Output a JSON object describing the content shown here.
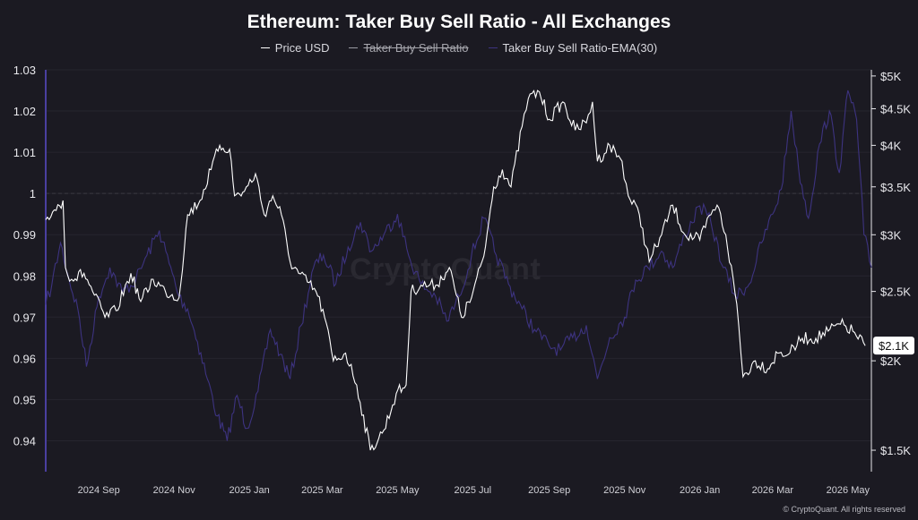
{
  "chart_data": {
    "type": "line",
    "title": "Ethereum: Taker Buy Sell Ratio - All Exchanges",
    "legend": [
      {
        "name": "Price USD",
        "color": "#ffffff",
        "hidden": false
      },
      {
        "name": "Taker Buy Sell Ratio",
        "color": "#ffffff",
        "hidden": true
      },
      {
        "name": "Taker Buy Sell Ratio-EMA(30)",
        "color": "#3d3380",
        "hidden": false
      }
    ],
    "x_ticks": [
      "2024 Sep",
      "2024 Nov",
      "2025 Jan",
      "2025 Mar",
      "2025 May",
      "2025 Jul",
      "2025 Sep",
      "2025 Nov",
      "2026 Jan",
      "2026 Mar",
      "2026 May"
    ],
    "x_range": [
      "2024-07-20",
      "2026-05-20"
    ],
    "y_left": {
      "ticks": [
        "1.03",
        "1.02",
        "1.01",
        "1",
        "0.99",
        "0.98",
        "0.97",
        "0.96",
        "0.95",
        "0.94"
      ],
      "min": 0.9325,
      "max": 1.03,
      "ref_line": 1.0
    },
    "y_right": {
      "ticks": [
        "$5K",
        "$4.5K",
        "$4K",
        "$3.5K",
        "$3K",
        "$2.5K",
        "$2K",
        "$1.5K"
      ],
      "values": [
        5000,
        4500,
        4000,
        3500,
        3000,
        2500,
        2000,
        1500
      ],
      "scale": "log",
      "min": 1400,
      "max": 5100,
      "current_label": "$2.1K",
      "current_value": 2100
    },
    "series": [
      {
        "name": "Price USD",
        "axis": "right",
        "points": [
          [
            "2024-07-20",
            3150
          ],
          [
            "2024-07-27",
            3250
          ],
          [
            "2024-08-03",
            3350
          ],
          [
            "2024-08-05",
            2700
          ],
          [
            "2024-08-10",
            2600
          ],
          [
            "2024-08-20",
            2650
          ],
          [
            "2024-08-27",
            2500
          ],
          [
            "2024-09-06",
            2300
          ],
          [
            "2024-09-15",
            2350
          ],
          [
            "2024-09-27",
            2650
          ],
          [
            "2024-10-05",
            2420
          ],
          [
            "2024-10-15",
            2600
          ],
          [
            "2024-10-25",
            2500
          ],
          [
            "2024-11-05",
            2450
          ],
          [
            "2024-11-12",
            3200
          ],
          [
            "2024-11-22",
            3350
          ],
          [
            "2024-12-01",
            3700
          ],
          [
            "2024-12-08",
            4000
          ],
          [
            "2024-12-16",
            3950
          ],
          [
            "2024-12-20",
            3400
          ],
          [
            "2024-12-28",
            3450
          ],
          [
            "2025-01-06",
            3650
          ],
          [
            "2025-01-13",
            3200
          ],
          [
            "2025-01-20",
            3400
          ],
          [
            "2025-01-27",
            3200
          ],
          [
            "2025-02-03",
            2750
          ],
          [
            "2025-02-10",
            2650
          ],
          [
            "2025-02-24",
            2500
          ],
          [
            "2025-03-03",
            2300
          ],
          [
            "2025-03-10",
            2000
          ],
          [
            "2025-03-20",
            2050
          ],
          [
            "2025-03-29",
            1850
          ],
          [
            "2025-04-09",
            1500
          ],
          [
            "2025-04-20",
            1600
          ],
          [
            "2025-04-30",
            1800
          ],
          [
            "2025-05-08",
            1850
          ],
          [
            "2025-05-12",
            2500
          ],
          [
            "2025-05-20",
            2550
          ],
          [
            "2025-06-01",
            2550
          ],
          [
            "2025-06-12",
            2700
          ],
          [
            "2025-06-22",
            2300
          ],
          [
            "2025-06-30",
            2450
          ],
          [
            "2025-07-10",
            2800
          ],
          [
            "2025-07-18",
            3500
          ],
          [
            "2025-07-25",
            3700
          ],
          [
            "2025-08-01",
            3500
          ],
          [
            "2025-08-10",
            4250
          ],
          [
            "2025-08-15",
            4650
          ],
          [
            "2025-08-24",
            4750
          ],
          [
            "2025-09-01",
            4350
          ],
          [
            "2025-09-12",
            4600
          ],
          [
            "2025-09-22",
            4200
          ],
          [
            "2025-10-01",
            4300
          ],
          [
            "2025-10-06",
            4600
          ],
          [
            "2025-10-10",
            3800
          ],
          [
            "2025-10-20",
            4000
          ],
          [
            "2025-10-30",
            3800
          ],
          [
            "2025-11-04",
            3400
          ],
          [
            "2025-11-13",
            3200
          ],
          [
            "2025-11-21",
            2750
          ],
          [
            "2025-12-01",
            3000
          ],
          [
            "2025-12-10",
            3300
          ],
          [
            "2025-12-20",
            3000
          ],
          [
            "2026-01-01",
            2950
          ],
          [
            "2026-01-10",
            3200
          ],
          [
            "2026-01-15",
            3300
          ],
          [
            "2026-01-22",
            3000
          ],
          [
            "2026-01-31",
            2400
          ],
          [
            "2026-02-05",
            1900
          ],
          [
            "2026-02-15",
            2000
          ],
          [
            "2026-02-25",
            1950
          ],
          [
            "2026-03-05",
            2050
          ],
          [
            "2026-03-15",
            2050
          ],
          [
            "2026-03-25",
            2150
          ],
          [
            "2026-04-05",
            2150
          ],
          [
            "2026-04-15",
            2200
          ],
          [
            "2026-04-25",
            2250
          ],
          [
            "2026-05-05",
            2200
          ],
          [
            "2026-05-15",
            2100
          ]
        ]
      },
      {
        "name": "Taker Buy Sell Ratio-EMA(30)",
        "axis": "left",
        "points": [
          [
            "2024-07-20",
            0.973
          ],
          [
            "2024-07-25",
            0.978
          ],
          [
            "2024-08-01",
            0.988
          ],
          [
            "2024-08-08",
            0.979
          ],
          [
            "2024-08-15",
            0.972
          ],
          [
            "2024-08-22",
            0.958
          ],
          [
            "2024-09-01",
            0.975
          ],
          [
            "2024-09-10",
            0.982
          ],
          [
            "2024-09-20",
            0.976
          ],
          [
            "2024-10-01",
            0.979
          ],
          [
            "2024-10-10",
            0.985
          ],
          [
            "2024-10-20",
            0.991
          ],
          [
            "2024-10-28",
            0.983
          ],
          [
            "2024-11-05",
            0.975
          ],
          [
            "2024-11-12",
            0.972
          ],
          [
            "2024-11-20",
            0.964
          ],
          [
            "2024-11-28",
            0.955
          ],
          [
            "2024-12-06",
            0.946
          ],
          [
            "2024-12-14",
            0.94
          ],
          [
            "2024-12-22",
            0.951
          ],
          [
            "2024-12-30",
            0.943
          ],
          [
            "2025-01-08",
            0.952
          ],
          [
            "2025-01-18",
            0.967
          ],
          [
            "2025-01-26",
            0.961
          ],
          [
            "2025-02-03",
            0.955
          ],
          [
            "2025-02-12",
            0.968
          ],
          [
            "2025-02-22",
            0.982
          ],
          [
            "2025-03-02",
            0.985
          ],
          [
            "2025-03-12",
            0.978
          ],
          [
            "2025-03-22",
            0.987
          ],
          [
            "2025-04-01",
            0.993
          ],
          [
            "2025-04-10",
            0.986
          ],
          [
            "2025-04-20",
            0.99
          ],
          [
            "2025-05-01",
            0.995
          ],
          [
            "2025-05-10",
            0.985
          ],
          [
            "2025-05-20",
            0.978
          ],
          [
            "2025-06-01",
            0.975
          ],
          [
            "2025-06-10",
            0.969
          ],
          [
            "2025-06-20",
            0.975
          ],
          [
            "2025-06-30",
            0.985
          ],
          [
            "2025-07-10",
            0.994
          ],
          [
            "2025-07-20",
            0.985
          ],
          [
            "2025-07-30",
            0.978
          ],
          [
            "2025-08-10",
            0.972
          ],
          [
            "2025-08-20",
            0.967
          ],
          [
            "2025-09-01",
            0.963
          ],
          [
            "2025-09-10",
            0.962
          ],
          [
            "2025-09-20",
            0.965
          ],
          [
            "2025-10-01",
            0.968
          ],
          [
            "2025-10-10",
            0.955
          ],
          [
            "2025-10-20",
            0.965
          ],
          [
            "2025-11-01",
            0.97
          ],
          [
            "2025-11-10",
            0.979
          ],
          [
            "2025-11-20",
            0.982
          ],
          [
            "2025-12-01",
            0.986
          ],
          [
            "2025-12-10",
            0.982
          ],
          [
            "2025-12-20",
            0.99
          ],
          [
            "2026-01-01",
            0.997
          ],
          [
            "2026-01-10",
            0.993
          ],
          [
            "2026-01-20",
            0.982
          ],
          [
            "2026-01-30",
            0.975
          ],
          [
            "2026-02-10",
            0.978
          ],
          [
            "2026-02-20",
            0.988
          ],
          [
            "2026-03-01",
            0.995
          ],
          [
            "2026-03-08",
            1.001
          ],
          [
            "2026-03-16",
            1.02
          ],
          [
            "2026-03-22",
            1.006
          ],
          [
            "2026-03-30",
            0.994
          ],
          [
            "2026-04-08",
            1.012
          ],
          [
            "2026-04-16",
            1.02
          ],
          [
            "2026-04-24",
            1.005
          ],
          [
            "2026-05-01",
            1.025
          ],
          [
            "2026-05-08",
            1.018
          ],
          [
            "2026-05-14",
            0.99
          ],
          [
            "2026-05-20",
            0.982
          ]
        ]
      }
    ],
    "watermark": "CryptoQuant",
    "copyright": "© CryptoQuant. All rights reserved"
  }
}
